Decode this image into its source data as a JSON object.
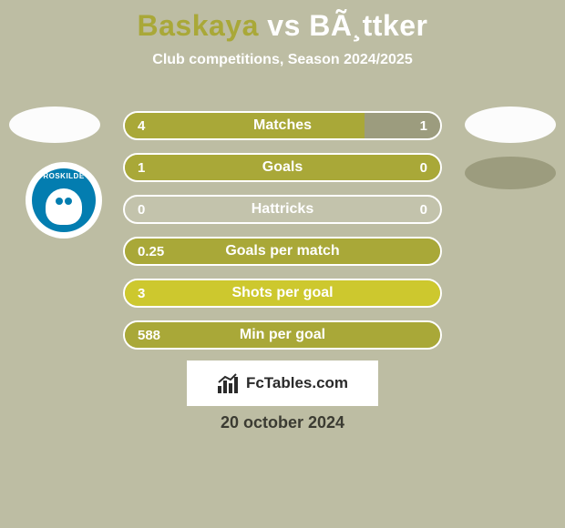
{
  "title": {
    "p1": "Baskaya",
    "vs": "vs",
    "p2": "BÃ¸ttker"
  },
  "subtitle": "Club competitions, Season 2024/2025",
  "date": "20 october 2024",
  "fctables": "FcTables.com",
  "club_name": "ROSKILDE",
  "colors": {
    "olive": "#a9a838",
    "olive_bright": "#cdc82e",
    "gray_seg": "#9c9c7e",
    "bg": "#bdbda3",
    "border": "#fff"
  },
  "bars": [
    {
      "label": "Matches",
      "left_val": "4",
      "right_val": "1",
      "left_pct": 76,
      "right_pct": 24,
      "left_color": "#a9a838",
      "right_color": "#9c9c7e",
      "right_text_dark": false
    },
    {
      "label": "Goals",
      "left_val": "1",
      "right_val": "0",
      "left_pct": 100,
      "right_pct": 0,
      "left_color": "#a9a838",
      "right_color": "#9c9c7e"
    },
    {
      "label": "Hattricks",
      "left_val": "0",
      "right_val": "0",
      "left_pct": 0,
      "right_pct": 0,
      "left_color": "#a9a838",
      "right_color": "#9c9c7e",
      "empty": true
    },
    {
      "label": "Goals per match",
      "left_val": "0.25",
      "right_val": "",
      "left_pct": 100,
      "right_pct": 0,
      "left_color": "#a9a838",
      "right_color": "#9c9c7e"
    },
    {
      "label": "Shots per goal",
      "left_val": "3",
      "right_val": "",
      "left_pct": 100,
      "right_pct": 0,
      "left_color": "#cdc82e",
      "right_color": "#9c9c7e"
    },
    {
      "label": "Min per goal",
      "left_val": "588",
      "right_val": "",
      "left_pct": 100,
      "right_pct": 0,
      "left_color": "#a9a838",
      "right_color": "#9c9c7e"
    }
  ]
}
